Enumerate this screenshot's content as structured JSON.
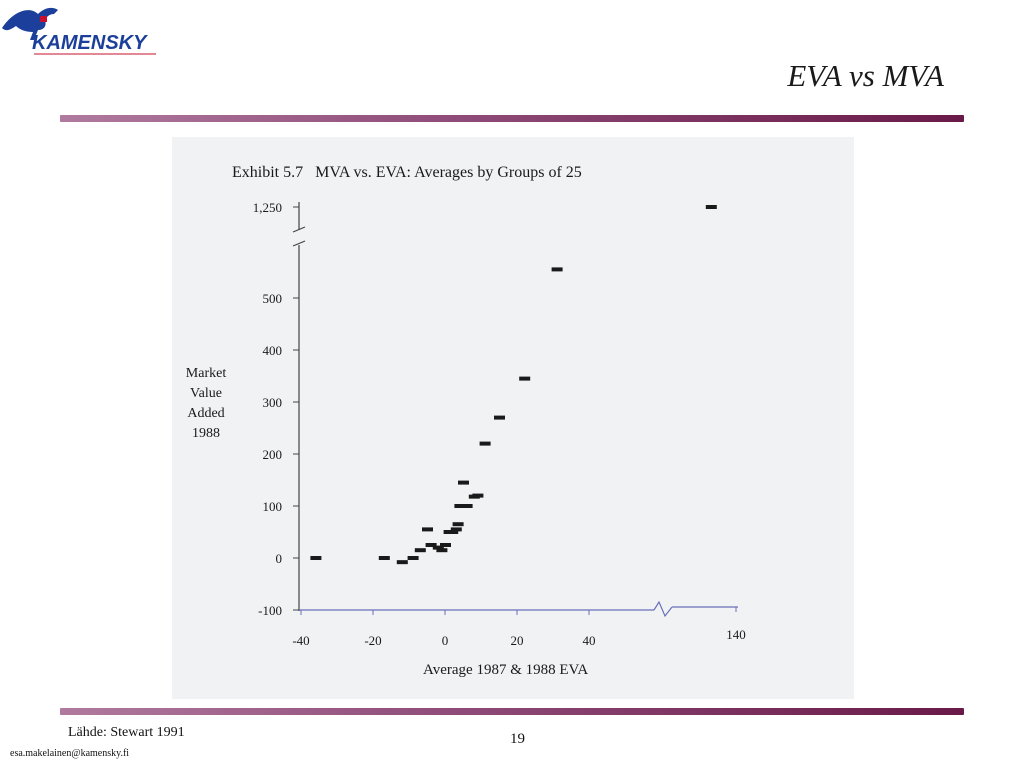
{
  "header": {
    "logo_text": "KAMENSKY",
    "title": "EVA vs MVA"
  },
  "footer": {
    "source": "Lähde: Stewart 1991",
    "page_number": "19",
    "email": "esa.makelainen@kamensky.fi"
  },
  "colors": {
    "accent_rule": "#8e4a78",
    "logo_blue": "#1b3f9a",
    "logo_red": "#c8102e"
  },
  "chart_data": {
    "type": "scatter",
    "title": "Exhibit 5.7   MVA vs. EVA: Averages by Groups of 25",
    "xlabel": "Average 1987 & 1988 EVA",
    "ylabel": [
      "Market",
      "Value",
      "Added",
      "1988"
    ],
    "x_ticks": [
      "-40",
      "-20",
      "0",
      "20",
      "40",
      "140"
    ],
    "y_ticks": [
      "1,250",
      "500",
      "400",
      "300",
      "200",
      "100",
      "0",
      "-100"
    ],
    "x_axis_break": "between 40 and 140",
    "y_axis_break": "between 500 and 1,250",
    "grid": false,
    "points": [
      {
        "x": -36,
        "y": 0
      },
      {
        "x": -17,
        "y": 0
      },
      {
        "x": -12,
        "y": -8
      },
      {
        "x": -9,
        "y": 0
      },
      {
        "x": -7,
        "y": 15
      },
      {
        "x": -5,
        "y": 55
      },
      {
        "x": -4,
        "y": 25
      },
      {
        "x": -2,
        "y": 20
      },
      {
        "x": -1,
        "y": 15
      },
      {
        "x": 0,
        "y": 25
      },
      {
        "x": 1,
        "y": 50
      },
      {
        "x": 2,
        "y": 50
      },
      {
        "x": 3,
        "y": 55
      },
      {
        "x": 3.5,
        "y": 65
      },
      {
        "x": 4,
        "y": 100
      },
      {
        "x": 5,
        "y": 100
      },
      {
        "x": 5,
        "y": 145
      },
      {
        "x": 6,
        "y": 100
      },
      {
        "x": 8,
        "y": 118
      },
      {
        "x": 9,
        "y": 120
      },
      {
        "x": 11,
        "y": 220
      },
      {
        "x": 15,
        "y": 270
      },
      {
        "x": 22,
        "y": 345
      },
      {
        "x": 31,
        "y": 555
      },
      {
        "x": 133,
        "y": 1250
      }
    ]
  }
}
